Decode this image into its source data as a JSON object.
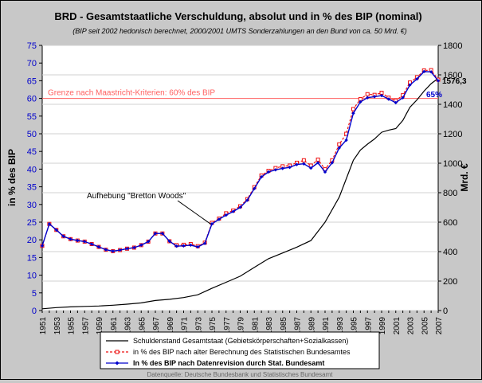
{
  "chart_data": {
    "type": "line",
    "title": "BRD - Gesamtstaatliche Verschuldung, absolut und in % des BIP (nominal)",
    "subtitle": "(BIP seit 2002 hedonisch berechnet, 2000/2001 UMTS Sonderzahlungen an den Bund von ca. 50 Mrd. €)",
    "ylabel_left": "in % des BIP",
    "ylabel_right": "Mrd. €",
    "ylim_left": [
      0,
      75
    ],
    "yticks_left": [
      "0",
      "5",
      "10",
      "15",
      "20",
      "25",
      "30",
      "35",
      "40",
      "45",
      "50",
      "55",
      "60",
      "65",
      "70",
      "75"
    ],
    "ylim_right": [
      0,
      1800
    ],
    "yticks_right": [
      "0",
      "200",
      "400",
      "600",
      "800",
      "1000",
      "1200",
      "1400",
      "1600",
      "1800"
    ],
    "xlim": [
      1951,
      2007
    ],
    "xticks": [
      "1951",
      "1953",
      "1955",
      "1957",
      "1959",
      "1961",
      "1963",
      "1965",
      "1967",
      "1969",
      "1971",
      "1973",
      "1975",
      "1977",
      "1979",
      "1981",
      "1983",
      "1985",
      "1987",
      "1989",
      "1991",
      "1993",
      "1995",
      "1997",
      "1999",
      "2001",
      "2003",
      "2005",
      "2007"
    ],
    "threshold": {
      "value": 60,
      "label": "Grenze nach Maastricht-Kriterien: 60% des BIP",
      "color": "#ff6060"
    },
    "annotations": {
      "bretton_woods": {
        "text": "Aufhebung \"Bretton Woods\"",
        "x": 1974.8,
        "y": 24.5
      },
      "last_debt": {
        "text": "1576,3"
      },
      "last_pct": {
        "text": "65%"
      }
    },
    "series": [
      {
        "name": "Schuldenstand Gesamtstaat (Gebietskörperschaften+Sozialkassen)",
        "axis": "right",
        "color": "#000000",
        "marker": "none",
        "x": [
          1951,
          1953,
          1955,
          1957,
          1959,
          1961,
          1963,
          1965,
          1967,
          1969,
          1971,
          1973,
          1975,
          1977,
          1979,
          1981,
          1983,
          1985,
          1987,
          1989,
          1991,
          1993,
          1995,
          1996,
          1997,
          1998,
          1999,
          2000,
          2001,
          2002,
          2003,
          2004,
          2005,
          2006,
          2007
        ],
        "y": [
          12,
          20,
          25,
          28,
          31,
          36,
          43,
          52,
          68,
          76,
          88,
          107,
          151,
          192,
          233,
          293,
          352,
          391,
          430,
          475,
          600,
          770,
          1020,
          1090,
          1130,
          1165,
          1210,
          1225,
          1235,
          1290,
          1380,
          1430,
          1490,
          1540,
          1576.3
        ]
      },
      {
        "name": "in % des BIP nach alter Berechnung des Statistischen Bundesamtes",
        "axis": "left",
        "color": "#ee1111",
        "marker": "square",
        "dashed": true,
        "x": [
          1951,
          1952,
          1953,
          1954,
          1955,
          1956,
          1957,
          1958,
          1959,
          1960,
          1961,
          1962,
          1963,
          1964,
          1965,
          1966,
          1967,
          1968,
          1969,
          1970,
          1971,
          1972,
          1973,
          1974,
          1975,
          1976,
          1977,
          1978,
          1979,
          1980,
          1981,
          1982,
          1983,
          1984,
          1985,
          1986,
          1987,
          1988,
          1989,
          1990,
          1991,
          1992,
          1993,
          1994,
          1995,
          1996,
          1997,
          1998,
          1999,
          2000,
          2001,
          2002,
          2003,
          2004,
          2005,
          2006,
          2007
        ],
        "y": [
          18.3,
          24.5,
          22.8,
          21.0,
          20.2,
          19.8,
          19.5,
          18.8,
          18.0,
          17.2,
          16.8,
          17.1,
          17.5,
          17.8,
          18.5,
          19.5,
          21.8,
          21.8,
          19.6,
          18.5,
          18.6,
          18.8,
          18.2,
          19.2,
          24.8,
          26.0,
          27.5,
          28.3,
          29.5,
          31.5,
          34.9,
          38.2,
          39.5,
          40.3,
          40.8,
          41.0,
          41.8,
          42.5,
          41.0,
          42.7,
          40.0,
          42.5,
          47.0,
          50.0,
          57.0,
          59.8,
          61.2,
          61.0,
          61.6,
          60.2,
          59.4,
          60.9,
          64.5,
          66.0,
          67.9,
          68.0,
          65.3
        ]
      },
      {
        "name": "In % des BIP nach Datenrevision durch Stat. Bundesamt",
        "axis": "left",
        "color": "#0000cc",
        "marker": "diamond",
        "x": [
          1951,
          1952,
          1953,
          1954,
          1955,
          1956,
          1957,
          1958,
          1959,
          1960,
          1961,
          1962,
          1963,
          1964,
          1965,
          1966,
          1967,
          1968,
          1969,
          1970,
          1971,
          1972,
          1973,
          1974,
          1975,
          1976,
          1977,
          1978,
          1979,
          1980,
          1981,
          1982,
          1983,
          1984,
          1985,
          1986,
          1987,
          1988,
          1989,
          1990,
          1991,
          1992,
          1993,
          1994,
          1995,
          1996,
          1997,
          1998,
          1999,
          2000,
          2001,
          2002,
          2003,
          2004,
          2005,
          2006,
          2007
        ],
        "y": [
          18.3,
          24.5,
          22.8,
          21.0,
          20.2,
          19.8,
          19.5,
          18.8,
          18.0,
          17.2,
          16.8,
          17.1,
          17.5,
          17.8,
          18.5,
          19.5,
          21.8,
          21.8,
          19.6,
          18.2,
          18.3,
          18.5,
          18.0,
          19.0,
          24.5,
          25.8,
          27.0,
          28.0,
          29.2,
          31.2,
          34.5,
          37.8,
          39.2,
          39.8,
          40.2,
          40.5,
          41.3,
          41.5,
          40.3,
          41.8,
          39.2,
          41.8,
          46.0,
          48.2,
          55.8,
          59.0,
          60.2,
          60.5,
          60.8,
          59.8,
          58.8,
          60.2,
          63.8,
          65.5,
          67.6,
          67.5,
          65.0
        ]
      }
    ]
  },
  "footer": {
    "source": "Datenquelle: Deutsche Bundesbank und Statistisches Bundesamt"
  }
}
